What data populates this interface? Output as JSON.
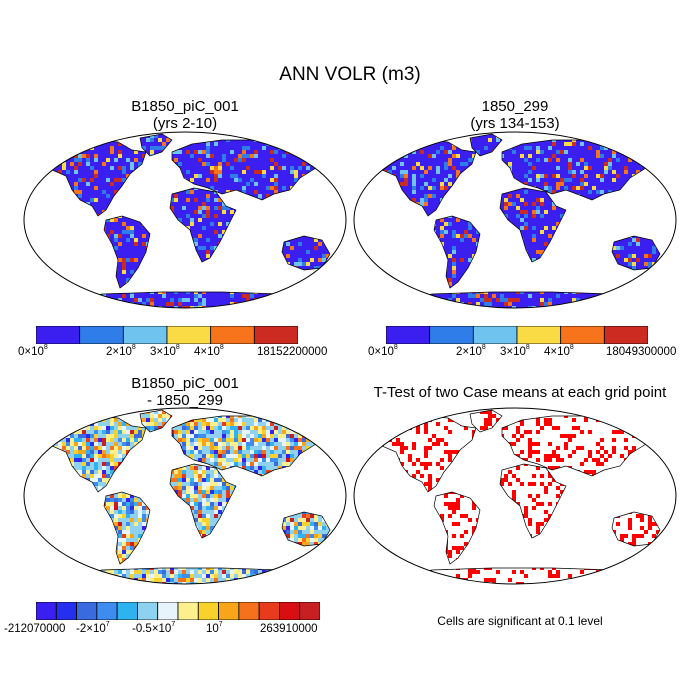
{
  "figure": {
    "title": "ANN VOLR (m3)"
  },
  "panels": {
    "p1": {
      "title1": "B1850_piC_001",
      "title2": "(yrs 2-10)"
    },
    "p2": {
      "title1": "1850_299",
      "title2": "(yrs 134-153)"
    },
    "p3": {
      "title1": "B1850_piC_001",
      "title2": "- 1850_299"
    },
    "p4": {
      "title1": "T-Test of two Case means at each grid point"
    }
  },
  "colorbars": {
    "cb1": {
      "colors": [
        "#3b1ff0",
        "#2e7de8",
        "#6ec3ef",
        "#fadb46",
        "#f7731c",
        "#cc2b22"
      ],
      "labels": [
        {
          "text": "0×10",
          "exp": "8"
        },
        {
          "text": "2×10",
          "exp": "8"
        },
        {
          "text": "3×10",
          "exp": "8"
        },
        {
          "text": "4×10",
          "exp": "8"
        },
        {
          "text": "18152200000",
          "exp": ""
        }
      ]
    },
    "cb2": {
      "colors": [
        "#3b1ff0",
        "#2e7de8",
        "#6ec3ef",
        "#fadb46",
        "#f7731c",
        "#cc2b22"
      ],
      "labels": [
        {
          "text": "0×10",
          "exp": "8"
        },
        {
          "text": "2×10",
          "exp": "8"
        },
        {
          "text": "3×10",
          "exp": "8"
        },
        {
          "text": "4×10",
          "exp": "8"
        },
        {
          "text": "18049300000",
          "exp": ""
        }
      ]
    },
    "cb3": {
      "colors": [
        "#3b1ff0",
        "#2530ee",
        "#3a6bde",
        "#3d8cf0",
        "#2fb3f0",
        "#8fd2ef",
        "#e8f4fc",
        "#fbf08d",
        "#f8d22a",
        "#f8a51a",
        "#f5711c",
        "#e83a1c",
        "#d80f12",
        "#c71f22"
      ],
      "labels": [
        {
          "text": "-212070000",
          "exp": ""
        },
        {
          "text": "-2×10",
          "exp": "7"
        },
        {
          "text": "-0.5×10",
          "exp": "7"
        },
        {
          "text": "10",
          "exp": "7"
        },
        {
          "text": "263910000",
          "exp": ""
        }
      ]
    }
  },
  "footnote": "Cells are significant at 0.1 level",
  "legend_colors": {
    "ocean": "#ffffff",
    "outline": "#000000",
    "significant": "#ff0000"
  }
}
